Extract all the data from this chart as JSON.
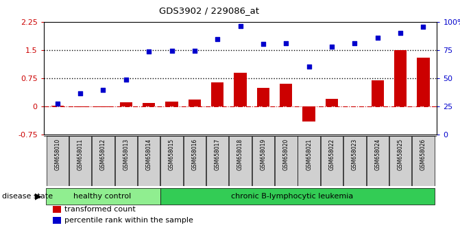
{
  "title": "GDS3902 / 229086_at",
  "samples": [
    "GSM658010",
    "GSM658011",
    "GSM658012",
    "GSM658013",
    "GSM658014",
    "GSM658015",
    "GSM658016",
    "GSM658017",
    "GSM658018",
    "GSM658019",
    "GSM658020",
    "GSM658021",
    "GSM658022",
    "GSM658023",
    "GSM658024",
    "GSM658025",
    "GSM658026"
  ],
  "bar_values": [
    0.02,
    -0.02,
    -0.01,
    0.12,
    0.1,
    0.13,
    0.18,
    0.65,
    0.9,
    0.5,
    0.6,
    -0.4,
    0.2,
    0.0,
    0.7,
    1.5,
    1.3
  ],
  "dot_y_left": [
    0.07,
    0.35,
    0.45,
    0.72,
    1.46,
    1.49,
    1.49,
    1.8,
    2.13,
    1.66,
    1.68,
    1.06,
    1.6,
    1.68,
    1.82,
    1.96,
    2.12
  ],
  "bar_color": "#cc0000",
  "dot_color": "#0000cc",
  "hline_y1": 1.5,
  "hline_y2": 0.75,
  "zero_line_color": "#cc0000",
  "ylim_left": [
    -0.75,
    2.25
  ],
  "ylim_right": [
    0,
    100
  ],
  "yticks_left": [
    -0.75,
    0.0,
    0.75,
    1.5,
    2.25
  ],
  "ytick_labels_left": [
    "-0.75",
    "0",
    "0.75",
    "1.5",
    "2.25"
  ],
  "yticks_right": [
    0,
    25,
    50,
    75,
    100
  ],
  "ytick_labels_right": [
    "0",
    "25",
    "50",
    "75",
    "100%"
  ],
  "healthy_count": 5,
  "healthy_label": "healthy control",
  "disease_label": "chronic B-lymphocytic leukemia",
  "healthy_color": "#90ee90",
  "disease_color": "#33cc55",
  "disease_state_label": "disease state",
  "legend_bar": "transformed count",
  "legend_dot": "percentile rank within the sample",
  "bg_color": "#ffffff",
  "label_bg_color": "#d0d0d0"
}
